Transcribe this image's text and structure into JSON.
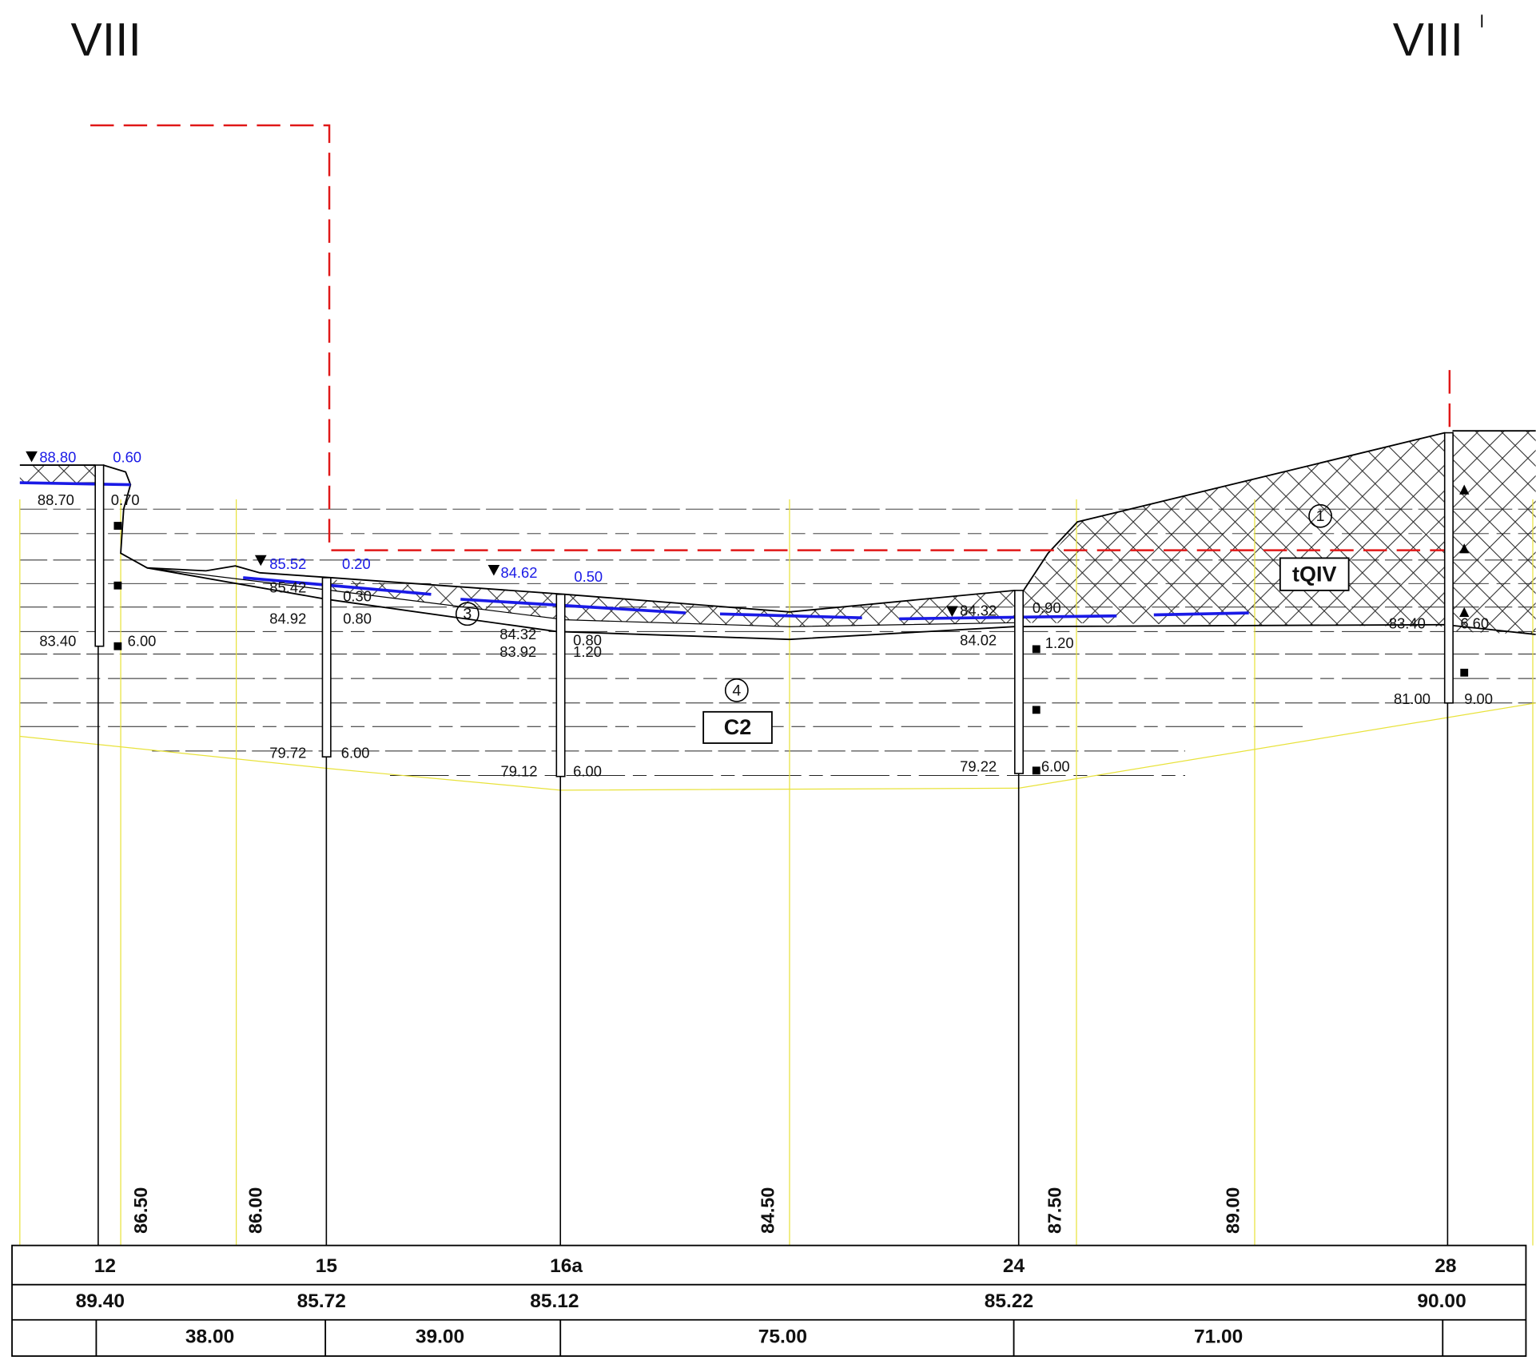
{
  "section": {
    "start": "VIII",
    "end": "VIII"
  },
  "boreholes": [
    {
      "water_level": "88.80",
      "water_depth": "0.60",
      "layers": [
        [
          "88.70",
          "0.70"
        ],
        [
          "83.40",
          "6.00"
        ]
      ]
    },
    {
      "water_level": "85.52",
      "water_depth": "0.20",
      "layers": [
        [
          "85.42",
          "0.30"
        ],
        [
          "84.92",
          "0.80"
        ],
        [
          "79.72",
          "6.00"
        ]
      ]
    },
    {
      "water_level": "84.62",
      "water_depth": "0.50",
      "layers": [
        [
          "84.32",
          "0.80"
        ],
        [
          "83.92",
          "1.20"
        ],
        [
          "79.12",
          "6.00"
        ]
      ]
    },
    {
      "water_level": "84.32",
      "water_depth": "0.90",
      "layers": [
        [
          "84.02",
          "1.20"
        ],
        [
          "79.22",
          "6.00"
        ]
      ]
    },
    {
      "layers": [
        [
          "83.40",
          "6.60"
        ],
        [
          "81.00",
          "9.00"
        ]
      ]
    }
  ],
  "layer_labels": {
    "circled": [
      "1",
      "3",
      "4"
    ],
    "boxed": [
      "tQIV",
      "C2"
    ]
  },
  "ground_elevations": [
    "86.50",
    "86.00",
    "84.50",
    "87.50",
    "89.00"
  ],
  "table": {
    "rows": [
      [
        "12",
        "15",
        "16a",
        "24",
        "28"
      ],
      [
        "89.40",
        "85.72",
        "85.12",
        "85.22",
        "90.00"
      ],
      [
        "38.00",
        "39.00",
        "75.00",
        "71.00"
      ]
    ]
  }
}
